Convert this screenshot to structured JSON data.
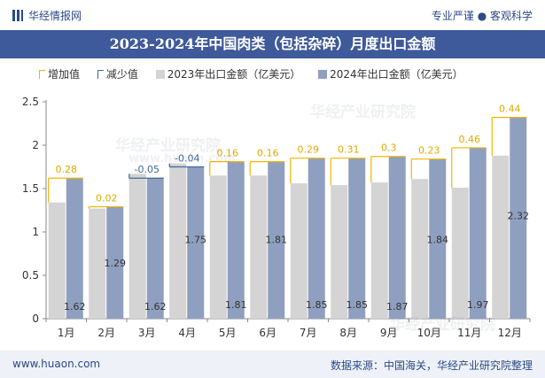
{
  "brand": {
    "logo_text": "华经情报网",
    "slogan": "专业严谨 ● 客观科学"
  },
  "title": "2023-2024年中国肉类（包括杂碎）月度出口金额",
  "legend": {
    "increase": "增加值",
    "decrease": "减少值",
    "series_2023": "2023年出口金额（亿美元）",
    "series_2024": "2024年出口金额（亿美元）"
  },
  "footer": {
    "url": "www.huaon.com",
    "source": "数据来源：中国海关，华经产业研究院整理"
  },
  "watermark": {
    "text1": "华经产业研究院",
    "text2": "www.huaon.com"
  },
  "colors": {
    "bar_2023": "#d4d4d4",
    "bar_2024": "#8f9fbf",
    "increase": "#f2b400",
    "decrease": "#3f6a9a",
    "title_bg": "#3f5a9a"
  },
  "chart_data": {
    "type": "bar",
    "categories": [
      "1月",
      "2月",
      "3月",
      "4月",
      "5月",
      "6月",
      "7月",
      "8月",
      "9月",
      "10月",
      "11月",
      "12月"
    ],
    "series": [
      {
        "name": "2023年出口金额（亿美元）",
        "values": [
          1.34,
          1.27,
          1.67,
          1.79,
          1.65,
          1.65,
          1.56,
          1.54,
          1.57,
          1.61,
          1.51,
          1.88
        ]
      },
      {
        "name": "2024年出口金额（亿美元）",
        "values": [
          1.62,
          1.29,
          1.62,
          1.75,
          1.81,
          1.81,
          1.85,
          1.85,
          1.87,
          1.84,
          1.97,
          2.32
        ]
      }
    ],
    "change": {
      "values": [
        0.28,
        0.02,
        -0.05,
        -0.04,
        0.16,
        0.16,
        0.29,
        0.31,
        0.3,
        0.23,
        0.46,
        0.44
      ],
      "labels": [
        "0.28",
        "0.02",
        "-0.05",
        "-0.04",
        "0.16",
        "0.16",
        "0.29",
        "0.31",
        "0.3",
        "0.23",
        "0.46",
        "0.44"
      ]
    },
    "value_labels_2024": [
      "1.62",
      "1.29",
      "1.62",
      "1.75",
      "1.81",
      "1.81",
      "1.85",
      "1.85",
      "1.87",
      "1.84",
      "1.97",
      "2.32"
    ],
    "y_ticks": [
      "0",
      "0.5",
      "1",
      "1.5",
      "2",
      "2.5"
    ],
    "ylim": [
      0,
      2.5
    ],
    "grid": false,
    "legend_position": "top-left"
  }
}
